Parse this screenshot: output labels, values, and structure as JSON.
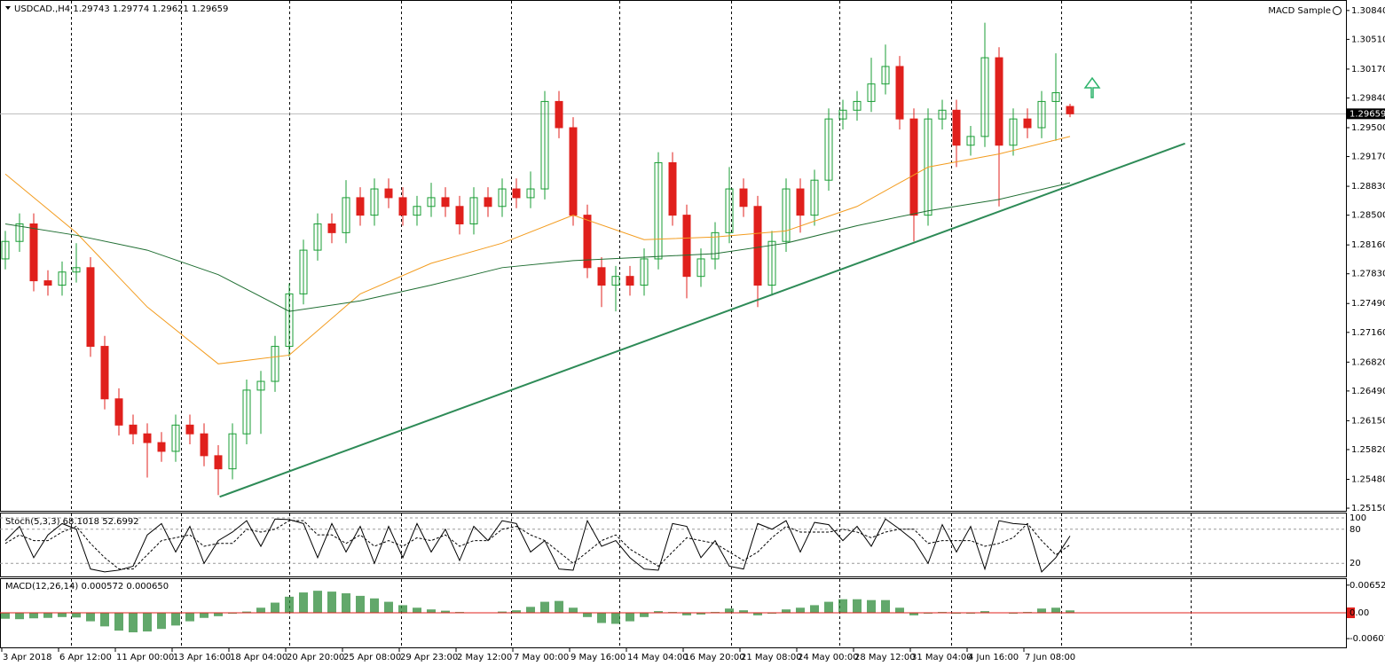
{
  "chart_data": {
    "type": "candlestick",
    "symbol": "USDCAD.,H4",
    "expert": "MACD Sample",
    "up_color": "#1a9e35",
    "down_color": "#e0201c",
    "ylim": [
      1.2512,
      1.3096
    ],
    "yticks": [
      {
        "value": 1.3084,
        "label": "1.30840"
      },
      {
        "value": 1.3051,
        "label": "1.30510"
      },
      {
        "value": 1.3017,
        "label": "1.30170"
      },
      {
        "value": 1.2984,
        "label": "1.29840"
      },
      {
        "value": 1.295,
        "label": "1.29500"
      },
      {
        "value": 1.2917,
        "label": "1.29170"
      },
      {
        "value": 1.2883,
        "label": "1.28830"
      },
      {
        "value": 1.285,
        "label": "1.28500"
      },
      {
        "value": 1.2816,
        "label": "1.28160"
      },
      {
        "value": 1.2783,
        "label": "1.27830"
      },
      {
        "value": 1.2749,
        "label": "1.27490"
      },
      {
        "value": 1.2716,
        "label": "1.27160"
      },
      {
        "value": 1.2682,
        "label": "1.26820"
      },
      {
        "value": 1.2649,
        "label": "1.26490"
      },
      {
        "value": 1.2615,
        "label": "1.26150"
      },
      {
        "value": 1.2582,
        "label": "1.25820"
      },
      {
        "value": 1.2548,
        "label": "1.25480"
      },
      {
        "value": 1.2515,
        "label": "1.25150"
      }
    ],
    "time_labels": [
      "3 Apr 2018",
      "6 Apr 12:00",
      "11 Apr 00:00",
      "13 Apr 16:00",
      "18 Apr 04:00",
      "20 Apr 20:00",
      "25 Apr 08:00",
      "29 Apr 23:00",
      "2 May 12:00",
      "7 May 00:00",
      "9 May 16:00",
      "14 May 04:00",
      "16 May 20:00",
      "21 May 08:00",
      "24 May 00:00",
      "28 May 12:00",
      "31 May 04:00",
      "4 Jun 16:00",
      "7 Jun 08:00"
    ],
    "candles": {
      "ohlc": [
        [
          1.28,
          1.2832,
          1.2788,
          1.282
        ],
        [
          1.282,
          1.2852,
          1.2808,
          1.284
        ],
        [
          1.284,
          1.2852,
          1.2763,
          1.2775
        ],
        [
          1.2775,
          1.2787,
          1.2758,
          1.277
        ],
        [
          1.277,
          1.2797,
          1.2758,
          1.2785
        ],
        [
          1.2785,
          1.2818,
          1.2773,
          1.279
        ],
        [
          1.279,
          1.2802,
          1.2688,
          1.27
        ],
        [
          1.27,
          1.2712,
          1.2628,
          1.264
        ],
        [
          1.264,
          1.2652,
          1.2598,
          1.261
        ],
        [
          1.261,
          1.2622,
          1.2588,
          1.26
        ],
        [
          1.26,
          1.2612,
          1.255,
          1.259
        ],
        [
          1.259,
          1.2602,
          1.2568,
          1.258
        ],
        [
          1.258,
          1.2622,
          1.2568,
          1.261
        ],
        [
          1.261,
          1.2622,
          1.2588,
          1.26
        ],
        [
          1.26,
          1.2612,
          1.2563,
          1.2575
        ],
        [
          1.2575,
          1.2587,
          1.253,
          1.256
        ],
        [
          1.256,
          1.2612,
          1.2548,
          1.26
        ],
        [
          1.26,
          1.2662,
          1.2588,
          1.265
        ],
        [
          1.265,
          1.2672,
          1.26,
          1.266
        ],
        [
          1.266,
          1.2712,
          1.2648,
          1.27
        ],
        [
          1.27,
          1.2772,
          1.2688,
          1.276
        ],
        [
          1.276,
          1.2822,
          1.2748,
          1.281
        ],
        [
          1.281,
          1.2852,
          1.2798,
          1.284
        ],
        [
          1.284,
          1.2852,
          1.2818,
          1.283
        ],
        [
          1.283,
          1.289,
          1.2818,
          1.287
        ],
        [
          1.287,
          1.2882,
          1.2838,
          1.285
        ],
        [
          1.285,
          1.2892,
          1.2838,
          1.288
        ],
        [
          1.288,
          1.2892,
          1.2858,
          1.287
        ],
        [
          1.287,
          1.2882,
          1.2838,
          1.285
        ],
        [
          1.285,
          1.2872,
          1.2838,
          1.286
        ],
        [
          1.286,
          1.2887,
          1.2848,
          1.287
        ],
        [
          1.287,
          1.2882,
          1.2848,
          1.286
        ],
        [
          1.286,
          1.2872,
          1.2828,
          1.284
        ],
        [
          1.284,
          1.2882,
          1.2828,
          1.287
        ],
        [
          1.287,
          1.2882,
          1.2848,
          1.286
        ],
        [
          1.286,
          1.2892,
          1.2848,
          1.288
        ],
        [
          1.288,
          1.2892,
          1.2858,
          1.287
        ],
        [
          1.287,
          1.29,
          1.2858,
          1.288
        ],
        [
          1.288,
          1.2992,
          1.2868,
          1.298
        ],
        [
          1.298,
          1.2992,
          1.2938,
          1.295
        ],
        [
          1.295,
          1.2962,
          1.2838,
          1.285
        ],
        [
          1.285,
          1.2862,
          1.2778,
          1.279
        ],
        [
          1.279,
          1.2802,
          1.2745,
          1.277
        ],
        [
          1.277,
          1.2792,
          1.274,
          1.278
        ],
        [
          1.278,
          1.2792,
          1.2758,
          1.277
        ],
        [
          1.277,
          1.2812,
          1.2758,
          1.28
        ],
        [
          1.28,
          1.2922,
          1.2788,
          1.291
        ],
        [
          1.291,
          1.2922,
          1.2838,
          1.285
        ],
        [
          1.285,
          1.2862,
          1.2755,
          1.278
        ],
        [
          1.278,
          1.2812,
          1.2768,
          1.28
        ],
        [
          1.28,
          1.2842,
          1.2788,
          1.283
        ],
        [
          1.283,
          1.2905,
          1.2818,
          1.288
        ],
        [
          1.288,
          1.2892,
          1.2848,
          1.286
        ],
        [
          1.286,
          1.2872,
          1.2745,
          1.277
        ],
        [
          1.277,
          1.2832,
          1.2758,
          1.282
        ],
        [
          1.282,
          1.2892,
          1.2808,
          1.288
        ],
        [
          1.288,
          1.2892,
          1.283,
          1.285
        ],
        [
          1.285,
          1.2902,
          1.2838,
          1.289
        ],
        [
          1.289,
          1.2972,
          1.2878,
          1.296
        ],
        [
          1.296,
          1.2982,
          1.2948,
          1.297
        ],
        [
          1.297,
          1.2992,
          1.2958,
          1.298
        ],
        [
          1.298,
          1.303,
          1.2968,
          1.3
        ],
        [
          1.3,
          1.3045,
          1.2988,
          1.302
        ],
        [
          1.302,
          1.3032,
          1.2948,
          1.296
        ],
        [
          1.296,
          1.2972,
          1.282,
          1.285
        ],
        [
          1.285,
          1.2972,
          1.2838,
          1.296
        ],
        [
          1.296,
          1.2982,
          1.2948,
          1.297
        ],
        [
          1.297,
          1.2982,
          1.2905,
          1.293
        ],
        [
          1.293,
          1.2952,
          1.2918,
          1.294
        ],
        [
          1.294,
          1.307,
          1.2928,
          1.303
        ],
        [
          1.303,
          1.3042,
          1.286,
          1.293
        ],
        [
          1.293,
          1.2972,
          1.2918,
          1.296
        ],
        [
          1.296,
          1.2972,
          1.2938,
          1.295
        ],
        [
          1.295,
          1.2992,
          1.2938,
          1.298
        ],
        [
          1.298,
          1.3035,
          1.2935,
          1.299
        ],
        [
          1.29743,
          1.29774,
          1.29621,
          1.29659
        ]
      ]
    },
    "ma": [
      {
        "color": "#f39c1f",
        "x": [
          0,
          5,
          10,
          15,
          20,
          25,
          30,
          35,
          40,
          45,
          50,
          55,
          60,
          65,
          70,
          75
        ],
        "values": [
          1.2897,
          1.283,
          1.2745,
          1.268,
          1.269,
          1.276,
          1.2795,
          1.2818,
          1.285,
          1.2822,
          1.2825,
          1.2832,
          1.286,
          1.2905,
          1.292,
          1.294
        ]
      },
      {
        "color": "#1f6e32",
        "x": [
          0,
          5,
          10,
          15,
          20,
          25,
          30,
          35,
          40,
          45,
          50,
          55,
          60,
          65,
          70,
          75
        ],
        "values": [
          1.284,
          1.2827,
          1.281,
          1.2782,
          1.274,
          1.2752,
          1.277,
          1.279,
          1.2798,
          1.2802,
          1.2806,
          1.2818,
          1.2838,
          1.2855,
          1.2868,
          1.2887
        ]
      }
    ],
    "trendline": {
      "color": "#2e8b57",
      "x": [
        15.1,
        83.1
      ],
      "y": [
        1.2528,
        1.2932
      ]
    },
    "stoch": {
      "name": "Stoch(5,3,3)",
      "ylim": [
        -3,
        107.7
      ],
      "yticks": [
        100,
        80,
        20
      ],
      "main": [
        60,
        85,
        30,
        70,
        90,
        80,
        10,
        5,
        8,
        15,
        70,
        90,
        40,
        85,
        20,
        60,
        75,
        95,
        50,
        98,
        97,
        90,
        30,
        90,
        40,
        85,
        20,
        85,
        30,
        90,
        40,
        80,
        25,
        85,
        60,
        95,
        90,
        40,
        60,
        10,
        8,
        95,
        50,
        60,
        30,
        10,
        8,
        90,
        85,
        30,
        60,
        15,
        10,
        90,
        80,
        95,
        40,
        92,
        88,
        60,
        85,
        50,
        98,
        80,
        60,
        20,
        88,
        40,
        85,
        10,
        95,
        90,
        88,
        5,
        30,
        68.1018
      ],
      "signal": [
        55,
        70,
        60,
        60,
        75,
        85,
        55,
        30,
        10,
        10,
        35,
        60,
        65,
        70,
        50,
        55,
        55,
        80,
        75,
        80,
        95,
        95,
        70,
        70,
        55,
        70,
        50,
        60,
        50,
        65,
        60,
        70,
        50,
        60,
        60,
        80,
        85,
        70,
        60,
        40,
        20,
        40,
        60,
        70,
        45,
        30,
        15,
        40,
        65,
        60,
        55,
        40,
        25,
        40,
        65,
        85,
        75,
        75,
        75,
        80,
        75,
        65,
        75,
        80,
        80,
        55,
        60,
        60,
        60,
        50,
        55,
        65,
        90,
        60,
        35,
        52.6992
      ]
    },
    "macd": {
      "name": "MACD(12,26,14)",
      "ylim": [
        -0.00815,
        0.00795
      ],
      "yticks": [
        0.006522,
        {
          "value": 0,
          "label": "0.00"
        },
        -0.006078
      ],
      "color": "#2e8b3a",
      "signal": {
        "value": 0.00065,
        "label": "0.000650"
      },
      "histogram": [
        -0.0014,
        -0.0015,
        -0.0013,
        -0.0012,
        -0.001,
        -0.0011,
        -0.002,
        -0.0032,
        -0.0042,
        -0.0046,
        -0.0044,
        -0.0038,
        -0.003,
        -0.002,
        -0.0012,
        -0.0008,
        -0.0002,
        0.0003,
        0.0012,
        0.0024,
        0.0038,
        0.0048,
        0.0052,
        0.005,
        0.0046,
        0.004,
        0.0034,
        0.0026,
        0.0018,
        0.0012,
        0.0008,
        0.0005,
        0.0002,
        0.0001,
        0.0001,
        0.0003,
        0.0006,
        0.0014,
        0.0026,
        0.0028,
        0.0012,
        -0.001,
        -0.0024,
        -0.0026,
        -0.002,
        -0.001,
        0.0004,
        0.0002,
        -0.0006,
        -0.0004,
        0.0002,
        0.001,
        0.0006,
        -0.0006,
        -0.0002,
        0.0008,
        0.0012,
        0.0018,
        0.0026,
        0.0032,
        0.0032,
        0.003,
        0.003,
        0.0012,
        -0.0006,
        -0.0002,
        0.0002,
        -0.0002,
        -0.0002,
        0.0004,
        0.0,
        -0.0002,
        0.0002,
        0.001,
        0.0012,
        0.000572
      ]
    }
  }
}
